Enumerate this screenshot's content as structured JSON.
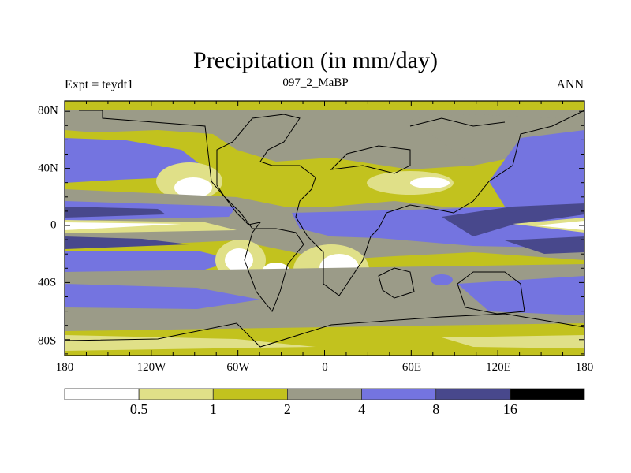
{
  "title": "Precipitation (in mm/day)",
  "left_subtitle": "Expt = teydt1",
  "center_subtitle": "097_2_MaBP",
  "right_subtitle": "ANN",
  "chart_data": {
    "type": "contour-map",
    "title": "Precipitation (in mm/day)",
    "x_ticks": [
      "180",
      "120W",
      "60W",
      "0",
      "60E",
      "120E",
      "180"
    ],
    "y_ticks": [
      "80N",
      "40N",
      "0",
      "40S",
      "80S"
    ],
    "colorbar": {
      "levels": [
        "0.5",
        "1",
        "2",
        "4",
        "8",
        "16"
      ],
      "colors": [
        "#ffffff",
        "#e0e088",
        "#c2c21e",
        "#9b9b88",
        "#7474e0",
        "#48488c",
        "#000000"
      ]
    }
  }
}
